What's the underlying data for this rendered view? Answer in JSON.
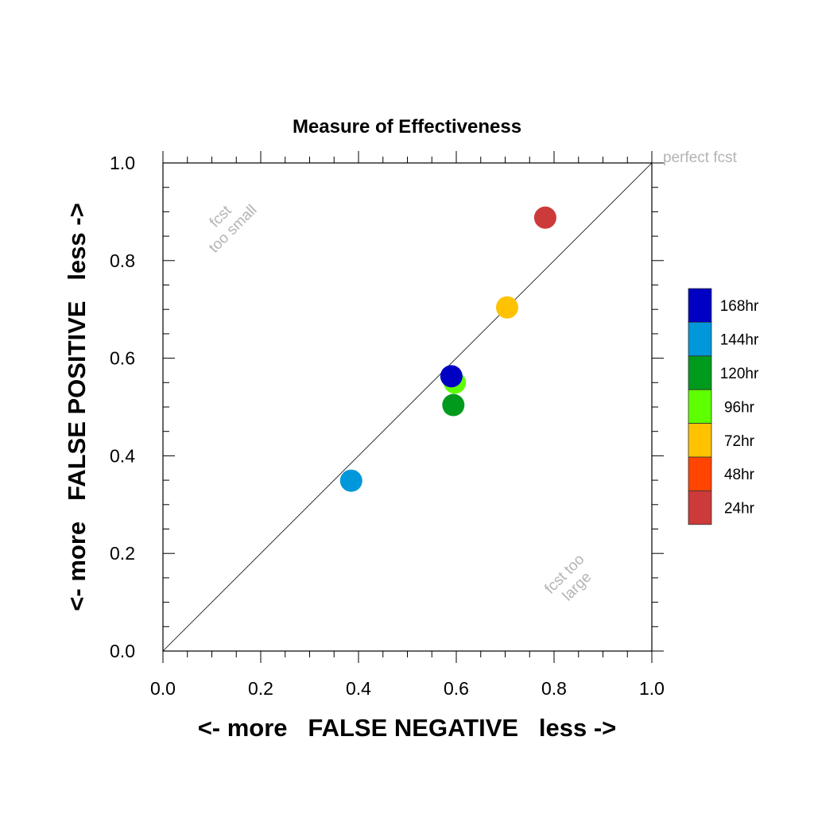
{
  "chart_data": {
    "type": "scatter",
    "title": "Measure of Effectiveness",
    "xlabel": "<- more   FALSE NEGATIVE   less ->",
    "ylabel": "<- more   FALSE POSITIVE   less ->",
    "xlim": [
      0.0,
      1.0
    ],
    "ylim": [
      0.0,
      1.0
    ],
    "x_ticks": [
      0.0,
      0.2,
      0.4,
      0.6,
      0.8,
      1.0
    ],
    "y_ticks": [
      0.0,
      0.2,
      0.4,
      0.6,
      0.8,
      1.0
    ],
    "x_tick_labels": [
      "0.0",
      "0.2",
      "0.4",
      "0.6",
      "0.8",
      "1.0"
    ],
    "y_tick_labels": [
      "0.0",
      "0.2",
      "0.4",
      "0.6",
      "0.8",
      "1.0"
    ],
    "grid": false,
    "diagonal_line": true,
    "legend_position": "right",
    "annotations": {
      "perfect": "perfect fcst",
      "small_line1": "fcst",
      "small_line2": "too small",
      "large_line1": "fcst too",
      "large_line2": "large"
    },
    "series": [
      {
        "name": "168hr",
        "color": "#0000c4",
        "points": [
          [
            0.59,
            0.563
          ]
        ]
      },
      {
        "name": "144hr",
        "color": "#0097db",
        "points": [
          [
            0.385,
            0.349
          ]
        ]
      },
      {
        "name": "120hr",
        "color": "#009a1c",
        "points": [
          [
            0.594,
            0.504
          ]
        ]
      },
      {
        "name": "96hr",
        "color": "#5eff00",
        "points": [
          [
            0.597,
            0.55
          ]
        ]
      },
      {
        "name": "72hr",
        "color": "#ffc200",
        "points": [
          [
            0.704,
            0.704
          ]
        ]
      },
      {
        "name": "48hr",
        "color": "#ff4500",
        "points": []
      },
      {
        "name": "24hr",
        "color": "#cc3a3a",
        "points": [
          [
            0.782,
            0.888
          ]
        ]
      }
    ]
  }
}
